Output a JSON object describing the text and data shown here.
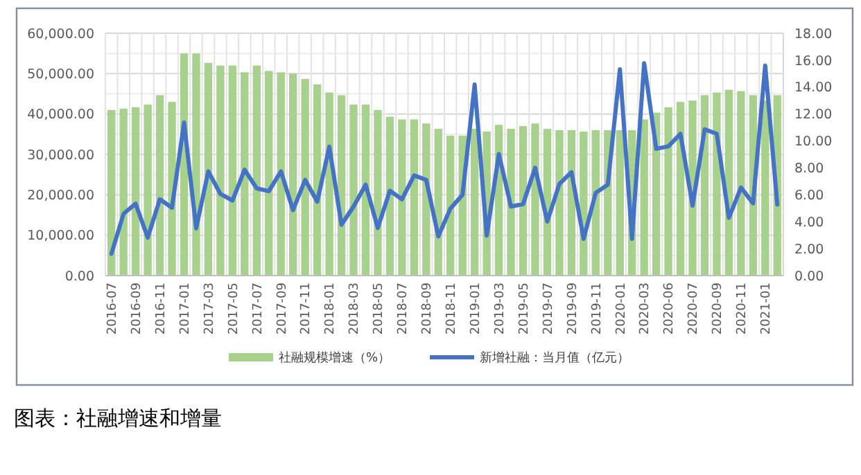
{
  "chart_data": {
    "type": "bar",
    "title": "图表：社融增速和增量",
    "categories": [
      "2016-07",
      null,
      "2016-09",
      null,
      "2016-11",
      null,
      "2017-01",
      null,
      "2017-03",
      null,
      "2017-05",
      null,
      "2017-07",
      null,
      "2017-09",
      null,
      "2017-11",
      null,
      "2018-01",
      null,
      "2018-03",
      null,
      "2018-05",
      null,
      "2018-07",
      null,
      "2018-09",
      null,
      "2018-11",
      null,
      "2019-01",
      null,
      "2019-03",
      null,
      "2019-05",
      null,
      "2019-07",
      null,
      "2019-09",
      null,
      "2019-11",
      null,
      "2020-01",
      null,
      "2020-03",
      null,
      "2020-06",
      null,
      "2020-07",
      null,
      "2020-09",
      null,
      "2020-11",
      null,
      "2021-01",
      null
    ],
    "series": [
      {
        "name": "社融规模增速（%）",
        "axis": "y2",
        "color": "#a9d18e",
        "values": [
          12.3,
          12.4,
          12.5,
          12.7,
          13.4,
          12.9,
          16.5,
          16.5,
          15.8,
          15.6,
          15.6,
          15.1,
          15.6,
          15.2,
          15.1,
          15.0,
          14.6,
          14.2,
          13.6,
          13.4,
          12.7,
          12.7,
          12.3,
          11.8,
          11.6,
          11.6,
          11.3,
          10.9,
          10.4,
          10.4,
          10.9,
          10.7,
          11.2,
          10.9,
          11.1,
          11.3,
          10.9,
          10.8,
          10.8,
          10.7,
          10.8,
          10.8,
          10.8,
          10.8,
          11.6,
          12.1,
          12.5,
          12.9,
          13.0,
          13.4,
          13.6,
          13.8,
          13.7,
          13.4,
          13.0,
          13.4
        ]
      },
      {
        "name": "新增社融：当月值（亿元）",
        "type": "line",
        "color": "#4472c4",
        "values": [
          5400,
          15300,
          17800,
          9400,
          18900,
          16800,
          37900,
          11700,
          25800,
          20200,
          18600,
          26200,
          21600,
          20900,
          25800,
          16200,
          23700,
          18300,
          31900,
          12600,
          17100,
          22500,
          11800,
          21000,
          18900,
          24800,
          23700,
          9700,
          16600,
          20000,
          47300,
          9900,
          30100,
          17100,
          17700,
          26700,
          13400,
          22700,
          25600,
          9100,
          20500,
          22500,
          51100,
          9100,
          52600,
          31400,
          32000,
          35100,
          17300,
          36200,
          35100,
          14300,
          21800,
          17900,
          52000,
          17600
        ]
      }
    ],
    "ylim": [
      0,
      60000
    ],
    "yticks": [
      {
        "value": 0,
        "label": "0.00"
      },
      {
        "value": 10000,
        "label": "10,000.00"
      },
      {
        "value": 20000,
        "label": "20,000.00"
      },
      {
        "value": 30000,
        "label": "30,000.00"
      },
      {
        "value": 40000,
        "label": "40,000.00"
      },
      {
        "value": 50000,
        "label": "50,000.00"
      },
      {
        "value": 60000,
        "label": "60,000.00"
      }
    ],
    "y2lim": [
      0,
      18
    ],
    "y2ticks": [
      {
        "value": 0,
        "label": "0.00"
      },
      {
        "value": 2,
        "label": "2.00"
      },
      {
        "value": 4,
        "label": "4.00"
      },
      {
        "value": 6,
        "label": "6.00"
      },
      {
        "value": 8,
        "label": "8.00"
      },
      {
        "value": 10,
        "label": "10.00"
      },
      {
        "value": 12,
        "label": "12.00"
      },
      {
        "value": 14,
        "label": "14.00"
      },
      {
        "value": 16,
        "label": "16.00"
      },
      {
        "value": 18,
        "label": "18.00"
      }
    ],
    "grid": true,
    "legend": "bottom"
  }
}
